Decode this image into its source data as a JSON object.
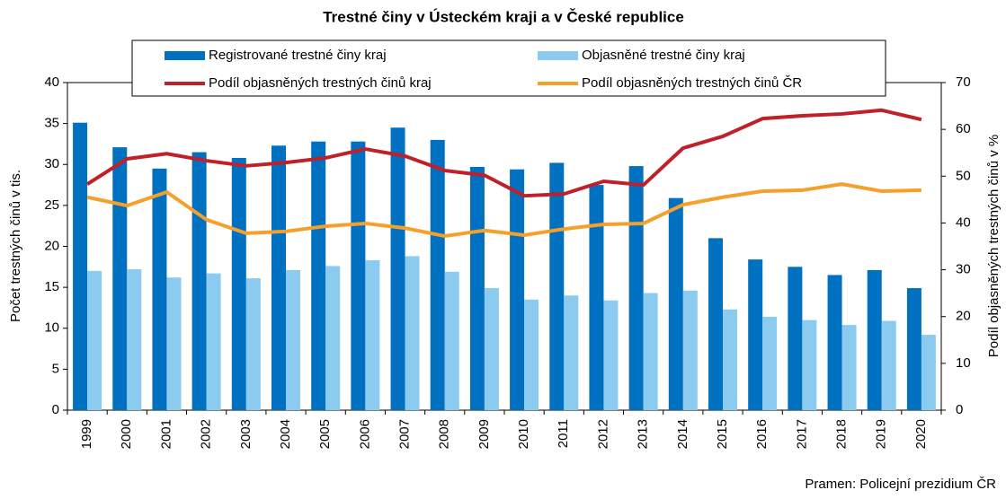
{
  "chart_data": {
    "type": "combo",
    "title": "Trestné činy v Ústeckém kraji a v České republice",
    "y_label": "Počet trestných činů v tis.",
    "y2_label": "Podíl objasněných trestných činů v %",
    "source": "Pramen: Policejní prezidium ČR",
    "categories": [
      "1999",
      "2000",
      "2001",
      "2002",
      "2003",
      "2004",
      "2005",
      "2006",
      "2007",
      "2008",
      "2009",
      "2010",
      "2011",
      "2012",
      "2013",
      "2014",
      "2015",
      "2016",
      "2017",
      "2018",
      "2019",
      "2020"
    ],
    "series": [
      {
        "name": "Registrované trestné činy kraj",
        "type": "bar",
        "color": "#0070c0",
        "values": [
          35.1,
          32.1,
          29.5,
          31.5,
          30.8,
          32.3,
          32.8,
          32.8,
          34.5,
          33.0,
          29.7,
          29.4,
          30.2,
          27.5,
          29.8,
          25.9,
          21.0,
          18.4,
          17.5,
          16.5,
          17.1,
          14.9
        ]
      },
      {
        "name": "Objasněné trestné činy kraj",
        "type": "bar",
        "color": "#8ccbf0",
        "values": [
          17.0,
          17.2,
          16.2,
          16.7,
          16.1,
          17.1,
          17.6,
          18.3,
          18.8,
          16.9,
          14.9,
          13.5,
          14.0,
          13.4,
          14.3,
          14.6,
          12.3,
          11.4,
          11.0,
          10.4,
          10.9,
          9.2
        ]
      },
      {
        "name": "Podíl objasněných trestných činů kraj",
        "type": "line",
        "axis": "y2",
        "color": "#c0202a",
        "values": [
          48.3,
          53.7,
          54.8,
          53.3,
          52.2,
          52.9,
          53.9,
          55.8,
          54.3,
          51.2,
          50.2,
          45.8,
          46.2,
          48.9,
          48.1,
          56.0,
          58.5,
          62.3,
          62.9,
          63.3,
          64.1,
          62.1
        ]
      },
      {
        "name": "Podíl objasněných trestných činů ČR",
        "type": "line",
        "axis": "y2",
        "color": "#f5a02a",
        "values": [
          45.5,
          43.7,
          46.6,
          40.7,
          37.8,
          38.2,
          39.3,
          39.9,
          38.9,
          37.2,
          38.4,
          37.4,
          38.7,
          39.7,
          39.9,
          43.9,
          45.5,
          46.8,
          47.0,
          48.3,
          46.8,
          47.0
        ]
      }
    ],
    "ylim": [
      0,
      40
    ],
    "yticks": [
      0,
      5,
      10,
      15,
      20,
      25,
      30,
      35,
      40
    ],
    "y2lim": [
      0,
      70
    ],
    "y2ticks": [
      0,
      10,
      20,
      30,
      40,
      50,
      60,
      70
    ],
    "grid": false
  }
}
